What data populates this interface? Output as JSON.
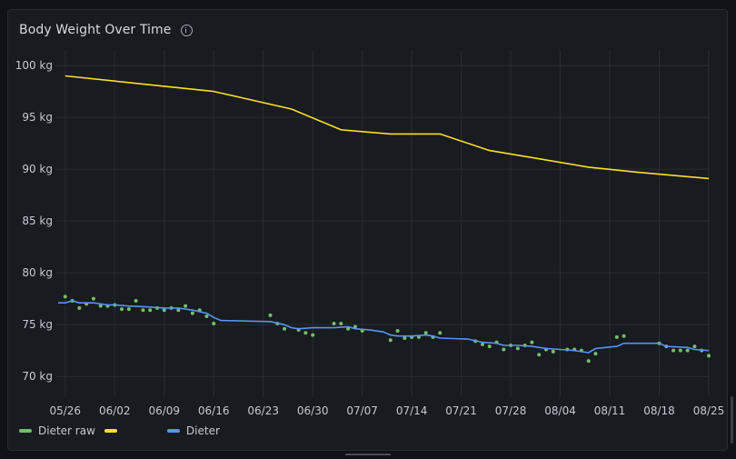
{
  "panel": {
    "title": "Body Weight Over Time",
    "info_icon": "info-icon"
  },
  "chart_data": {
    "type": "line",
    "title": "Body Weight Over Time",
    "xlabel": "",
    "ylabel": "",
    "y_unit": "kg",
    "ylim": [
      68,
      101.5
    ],
    "xlim": [
      "2024-05-25",
      "2024-08-25"
    ],
    "y_ticks": [
      "100 kg",
      "95 kg",
      "90 kg",
      "85 kg",
      "80 kg",
      "75 kg",
      "70 kg"
    ],
    "y_tick_values": [
      100,
      95,
      90,
      85,
      80,
      75,
      70
    ],
    "x_ticks": [
      "05/26",
      "06/02",
      "06/09",
      "06/16",
      "06/23",
      "06/30",
      "07/07",
      "07/14",
      "07/21",
      "07/28",
      "08/04",
      "08/11",
      "08/18",
      "08/25"
    ],
    "x_tick_values": [
      "2024-05-26",
      "2024-06-02",
      "2024-06-09",
      "2024-06-16",
      "2024-06-23",
      "2024-06-30",
      "2024-07-07",
      "2024-07-14",
      "2024-07-21",
      "2024-07-28",
      "2024-08-04",
      "2024-08-11",
      "2024-08-18",
      "2024-08-25"
    ],
    "grid": true,
    "legend_position": "bottom-left",
    "series": [
      {
        "name": "Dieter raw",
        "style": "points",
        "color": "#73bf69",
        "points": [
          [
            "2024-05-26",
            77.7
          ],
          [
            "2024-05-27",
            77.3
          ],
          [
            "2024-05-28",
            76.6
          ],
          [
            "2024-05-29",
            77.0
          ],
          [
            "2024-05-30",
            77.5
          ],
          [
            "2024-05-31",
            76.8
          ],
          [
            "2024-06-01",
            76.8
          ],
          [
            "2024-06-02",
            76.9
          ],
          [
            "2024-06-03",
            76.5
          ],
          [
            "2024-06-04",
            76.5
          ],
          [
            "2024-06-05",
            77.3
          ],
          [
            "2024-06-06",
            76.4
          ],
          [
            "2024-06-07",
            76.4
          ],
          [
            "2024-06-08",
            76.6
          ],
          [
            "2024-06-09",
            76.4
          ],
          [
            "2024-06-10",
            76.6
          ],
          [
            "2024-06-11",
            76.4
          ],
          [
            "2024-06-12",
            76.8
          ],
          [
            "2024-06-13",
            76.1
          ],
          [
            "2024-06-14",
            76.4
          ],
          [
            "2024-06-15",
            75.8
          ],
          [
            "2024-06-16",
            75.1
          ],
          [
            "2024-06-24",
            75.9
          ],
          [
            "2024-06-25",
            75.1
          ],
          [
            "2024-06-26",
            74.6
          ],
          [
            "2024-06-28",
            74.5
          ],
          [
            "2024-06-29",
            74.2
          ],
          [
            "2024-06-30",
            74.0
          ],
          [
            "2024-07-03",
            75.1
          ],
          [
            "2024-07-04",
            75.1
          ],
          [
            "2024-07-05",
            74.6
          ],
          [
            "2024-07-06",
            74.8
          ],
          [
            "2024-07-07",
            74.4
          ],
          [
            "2024-07-11",
            73.5
          ],
          [
            "2024-07-12",
            74.4
          ],
          [
            "2024-07-13",
            73.7
          ],
          [
            "2024-07-14",
            73.8
          ],
          [
            "2024-07-15",
            73.8
          ],
          [
            "2024-07-16",
            74.2
          ],
          [
            "2024-07-17",
            73.8
          ],
          [
            "2024-07-18",
            74.2
          ],
          [
            "2024-07-23",
            73.4
          ],
          [
            "2024-07-24",
            73.1
          ],
          [
            "2024-07-25",
            72.9
          ],
          [
            "2024-07-26",
            73.3
          ],
          [
            "2024-07-27",
            72.6
          ],
          [
            "2024-07-28",
            73.0
          ],
          [
            "2024-07-29",
            72.7
          ],
          [
            "2024-07-30",
            73.0
          ],
          [
            "2024-07-31",
            73.3
          ],
          [
            "2024-08-01",
            72.1
          ],
          [
            "2024-08-02",
            72.6
          ],
          [
            "2024-08-03",
            72.4
          ],
          [
            "2024-08-05",
            72.6
          ],
          [
            "2024-08-06",
            72.6
          ],
          [
            "2024-08-07",
            72.5
          ],
          [
            "2024-08-08",
            71.5
          ],
          [
            "2024-08-09",
            72.2
          ],
          [
            "2024-08-12",
            73.8
          ],
          [
            "2024-08-13",
            73.9
          ],
          [
            "2024-08-18",
            73.2
          ],
          [
            "2024-08-19",
            72.9
          ],
          [
            "2024-08-20",
            72.5
          ],
          [
            "2024-08-21",
            72.5
          ],
          [
            "2024-08-22",
            72.5
          ],
          [
            "2024-08-23",
            72.9
          ],
          [
            "2024-08-24",
            72.5
          ],
          [
            "2024-08-25",
            72.0
          ]
        ]
      },
      {
        "name": "",
        "style": "line",
        "color": "#fade2a",
        "points": [
          [
            "2024-05-26",
            99.0
          ],
          [
            "2024-06-02",
            98.5
          ],
          [
            "2024-06-09",
            98.0
          ],
          [
            "2024-06-16",
            97.5
          ],
          [
            "2024-06-27",
            95.8
          ],
          [
            "2024-07-04",
            93.8
          ],
          [
            "2024-07-11",
            93.4
          ],
          [
            "2024-07-18",
            93.4
          ],
          [
            "2024-07-25",
            91.8
          ],
          [
            "2024-08-01",
            91.0
          ],
          [
            "2024-08-08",
            90.2
          ],
          [
            "2024-08-15",
            89.7
          ],
          [
            "2024-08-25",
            89.1
          ]
        ]
      },
      {
        "name": "Dieter",
        "style": "line",
        "color": "#5794f2",
        "points": [
          [
            "2024-05-25",
            77.1
          ],
          [
            "2024-05-26",
            77.1
          ],
          [
            "2024-05-27",
            77.3
          ],
          [
            "2024-05-28",
            77.1
          ],
          [
            "2024-05-30",
            77.1
          ],
          [
            "2024-06-01",
            76.9
          ],
          [
            "2024-06-02",
            76.9
          ],
          [
            "2024-06-04",
            76.8
          ],
          [
            "2024-06-07",
            76.7
          ],
          [
            "2024-06-09",
            76.6
          ],
          [
            "2024-06-11",
            76.6
          ],
          [
            "2024-06-13",
            76.4
          ],
          [
            "2024-06-15",
            76.1
          ],
          [
            "2024-06-16",
            75.7
          ],
          [
            "2024-06-17",
            75.4
          ],
          [
            "2024-06-24",
            75.3
          ],
          [
            "2024-06-26",
            75.0
          ],
          [
            "2024-06-27",
            74.7
          ],
          [
            "2024-06-28",
            74.6
          ],
          [
            "2024-06-30",
            74.7
          ],
          [
            "2024-07-03",
            74.7
          ],
          [
            "2024-07-05",
            74.8
          ],
          [
            "2024-07-06",
            74.6
          ],
          [
            "2024-07-08",
            74.5
          ],
          [
            "2024-07-10",
            74.3
          ],
          [
            "2024-07-11",
            74.0
          ],
          [
            "2024-07-12",
            73.9
          ],
          [
            "2024-07-14",
            73.9
          ],
          [
            "2024-07-16",
            74.0
          ],
          [
            "2024-07-17",
            73.9
          ],
          [
            "2024-07-18",
            73.7
          ],
          [
            "2024-07-22",
            73.6
          ],
          [
            "2024-07-24",
            73.3
          ],
          [
            "2024-07-26",
            73.2
          ],
          [
            "2024-07-27",
            73.0
          ],
          [
            "2024-07-29",
            73.0
          ],
          [
            "2024-07-31",
            72.9
          ],
          [
            "2024-08-02",
            72.7
          ],
          [
            "2024-08-04",
            72.6
          ],
          [
            "2024-08-06",
            72.5
          ],
          [
            "2024-08-08",
            72.3
          ],
          [
            "2024-08-09",
            72.7
          ],
          [
            "2024-08-12",
            72.9
          ],
          [
            "2024-08-13",
            73.2
          ],
          [
            "2024-08-18",
            73.2
          ],
          [
            "2024-08-19",
            72.9
          ],
          [
            "2024-08-22",
            72.8
          ],
          [
            "2024-08-23",
            72.6
          ],
          [
            "2024-08-25",
            72.5
          ]
        ]
      }
    ]
  },
  "legend": {
    "items": [
      {
        "label": "Dieter raw",
        "color": "#73bf69"
      },
      {
        "label": "",
        "color": "#fade2a"
      },
      {
        "label": "Dieter",
        "color": "#5794f2"
      }
    ]
  }
}
